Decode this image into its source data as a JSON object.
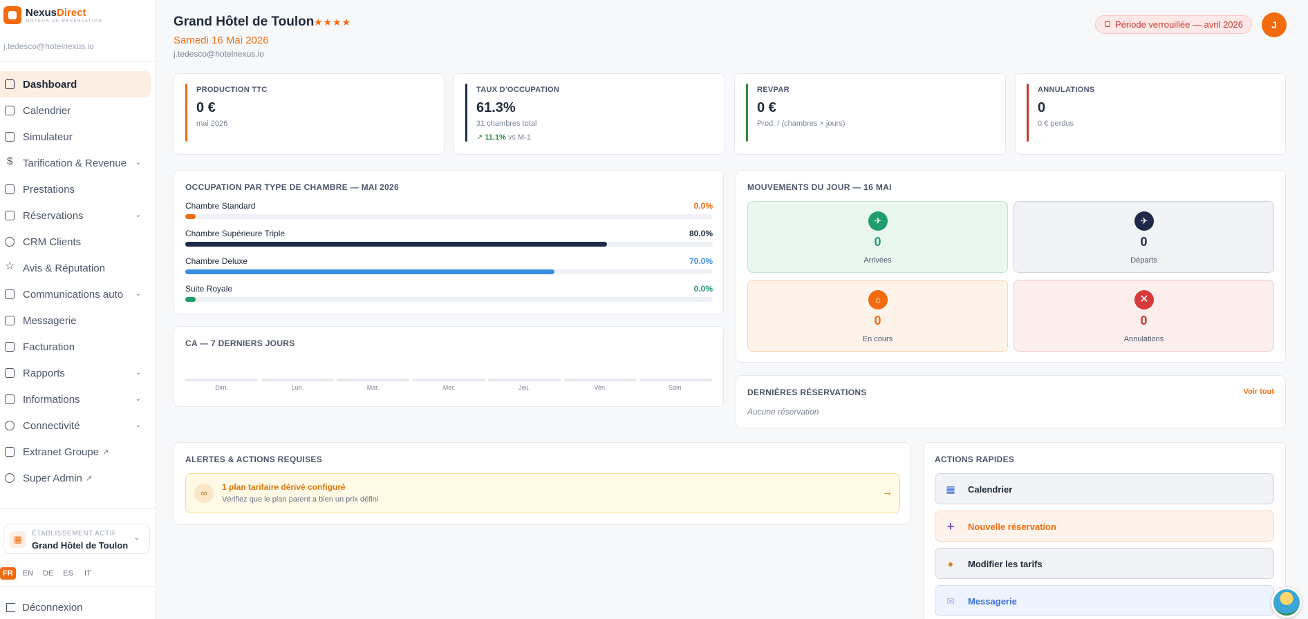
{
  "brand": {
    "name_part1": "Nexus",
    "name_part2": "Direct",
    "tagline": "MOTEUR DE RÉSERVATION"
  },
  "user": {
    "email": "j.tedesco@hotelnexus.io",
    "initial": "J"
  },
  "sidebar": {
    "items": [
      {
        "label": "Dashboard",
        "icon": "dashboard-icon",
        "active": true
      },
      {
        "label": "Calendrier",
        "icon": "calendar-icon"
      },
      {
        "label": "Simulateur",
        "icon": "calculator-icon"
      },
      {
        "label": "Tarification & Revenue",
        "icon": "dollar-icon",
        "chevron": true
      },
      {
        "label": "Prestations",
        "icon": "package-icon"
      },
      {
        "label": "Réservations",
        "icon": "book-icon",
        "chevron": true
      },
      {
        "label": "CRM Clients",
        "icon": "users-icon"
      },
      {
        "label": "Avis & Réputation",
        "icon": "star-icon"
      },
      {
        "label": "Communications auto",
        "icon": "mail-icon",
        "chevron": true
      },
      {
        "label": "Messagerie",
        "icon": "message-icon"
      },
      {
        "label": "Facturation",
        "icon": "receipt-icon"
      },
      {
        "label": "Rapports",
        "icon": "bar-chart-icon",
        "chevron": true
      },
      {
        "label": "Informations",
        "icon": "building-icon",
        "chevron": true
      },
      {
        "label": "Connectivité",
        "icon": "network-icon",
        "chevron": true
      },
      {
        "label": "Extranet Groupe",
        "icon": "building-icon",
        "external": true
      },
      {
        "label": "Super Admin",
        "icon": "shield-icon",
        "external": true
      }
    ],
    "establishment": {
      "label": "ÉTABLISSEMENT ACTIF",
      "name": "Grand Hôtel de Toulon"
    },
    "languages": [
      "FR",
      "EN",
      "DE",
      "ES",
      "IT"
    ],
    "active_language": "FR",
    "logout": "Déconnexion"
  },
  "header": {
    "title": "Grand Hôtel de Toulon",
    "stars": "★★★★",
    "date": "Samedi 16 Mai 2026",
    "email": "j.tedesco@hotelnexus.io",
    "lock_badge": "Période verrouillée — avril 2026"
  },
  "kpis": [
    {
      "label": "PRODUCTION TTC",
      "value": "0 €",
      "sub": "mai 2026",
      "color": "#f26b0f"
    },
    {
      "label": "TAUX D'OCCUPATION",
      "value": "61.3%",
      "sub": "31 chambres total",
      "trend_value": "11.1%",
      "trend_text": "vs M-1",
      "color": "#1e2a4a"
    },
    {
      "label": "REVPAR",
      "value": "0 €",
      "sub": "Prod. / (chambres × jours)",
      "color": "#2a8a3e"
    },
    {
      "label": "ANNULATIONS",
      "value": "0",
      "sub": "0 € perdus",
      "color": "#c0392b"
    }
  ],
  "occupancy": {
    "title": "OCCUPATION PAR TYPE DE CHAMBRE — MAI 2026",
    "rows": [
      {
        "name": "Chambre Standard",
        "pct": "0.0%",
        "value": 0,
        "color": "#f26b0f"
      },
      {
        "name": "Chambre Supérieure Triple",
        "pct": "80.0%",
        "value": 80,
        "color": "#1e2a4a"
      },
      {
        "name": "Chambre Deluxe",
        "pct": "70.0%",
        "value": 70,
        "color": "#3b8ee0"
      },
      {
        "name": "Suite Royale",
        "pct": "0.0%",
        "value": 0,
        "color": "#1f9d6b"
      }
    ]
  },
  "ca": {
    "title": "CA — 7 DERNIERS JOURS",
    "days": [
      "Dim.",
      "Lun.",
      "Mar.",
      "Mer.",
      "Jeu.",
      "Ven.",
      "Sam."
    ]
  },
  "movements": {
    "title": "MOUVEMENTS DU JOUR — 16 MAI",
    "items": [
      {
        "label": "Arrivées",
        "value": "0",
        "icon": "plane-arrival-icon"
      },
      {
        "label": "Départs",
        "value": "0",
        "icon": "plane-departure-icon"
      },
      {
        "label": "En cours",
        "value": "0",
        "icon": "house-icon"
      },
      {
        "label": "Annulations",
        "value": "0",
        "icon": "cross-icon"
      }
    ]
  },
  "last_reservations": {
    "title": "DERNIÈRES RÉSERVATIONS",
    "link": "Voir tout",
    "empty": "Aucune réservation"
  },
  "alerts": {
    "title": "ALERTES & ACTIONS REQUISES",
    "items": [
      {
        "title": "1 plan tarifaire dérivé configuré",
        "sub": "Vérifiez que le plan parent a bien un prix défini",
        "icon": "link-icon",
        "arrow": "→"
      }
    ]
  },
  "quick_actions": {
    "title": "ACTIONS RAPIDES",
    "items": [
      {
        "label": "Calendrier",
        "icon": "calendar-icon"
      },
      {
        "label": "Nouvelle réservation",
        "icon": "plus-icon"
      },
      {
        "label": "Modifier les tarifs",
        "icon": "money-bag-icon"
      },
      {
        "label": "Messagerie",
        "icon": "envelope-icon"
      }
    ]
  }
}
